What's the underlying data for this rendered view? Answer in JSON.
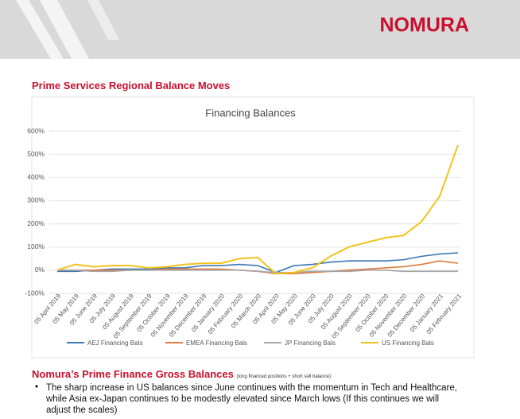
{
  "header": {
    "logo": "NOMURA"
  },
  "heading": "Prime Services Regional Balance Moves",
  "chart_data": {
    "type": "line",
    "title": "Financing Balances",
    "categories": [
      "05 April 2019",
      "05 May 2019",
      "05 June 2019",
      "05 July 2019",
      "05 August 2019",
      "05 September 2019",
      "05 October 2019",
      "05 November 2019",
      "05 December 2019",
      "05 January 2020",
      "05 February 2020",
      "05 March 2020",
      "05 April 2020",
      "05 May 2020",
      "05 June 2020",
      "05 July 2020",
      "05 August 2020",
      "05 September 2020",
      "05 October 2020",
      "05 November 2020",
      "05 December 2020",
      "05 January 2021",
      "05 February 2021"
    ],
    "series": [
      {
        "name": "AEJ Financing Bals",
        "color": "#3b78b5",
        "values": [
          -5,
          -5,
          0,
          5,
          5,
          5,
          10,
          10,
          20,
          20,
          25,
          20,
          -10,
          20,
          25,
          35,
          40,
          40,
          40,
          45,
          60,
          70,
          75
        ]
      },
      {
        "name": "EMEA Financing Bals",
        "color": "#e07a3c",
        "values": [
          0,
          0,
          0,
          0,
          0,
          0,
          5,
          5,
          5,
          5,
          0,
          -5,
          -15,
          -15,
          -10,
          -5,
          0,
          5,
          10,
          15,
          25,
          40,
          30
        ]
      },
      {
        "name": "JP Financing Bals",
        "color": "#a5a5a5",
        "values": [
          0,
          0,
          -5,
          -5,
          0,
          0,
          0,
          0,
          0,
          0,
          0,
          -5,
          -10,
          -10,
          -5,
          -5,
          -5,
          0,
          0,
          -5,
          -5,
          -5,
          -5
        ]
      },
      {
        "name": "US Financing Bals",
        "color": "#f2c31c",
        "values": [
          0,
          25,
          15,
          20,
          20,
          10,
          15,
          25,
          30,
          30,
          50,
          55,
          -15,
          -10,
          10,
          60,
          100,
          120,
          140,
          150,
          210,
          320,
          540
        ]
      }
    ],
    "ylim": [
      -100,
      600
    ],
    "yticks": [
      {
        "value": -100,
        "label": "-100%"
      },
      {
        "value": 0,
        "label": "0%"
      },
      {
        "value": 100,
        "label": "100%"
      },
      {
        "value": 200,
        "label": "200%"
      },
      {
        "value": 300,
        "label": "300%"
      },
      {
        "value": 400,
        "label": "400%"
      },
      {
        "value": 500,
        "label": "500%"
      },
      {
        "value": 600,
        "label": "600%"
      }
    ],
    "grid": true,
    "legend": "bottom"
  },
  "section": {
    "title": "Nomura’s Prime Finance Gross Balances",
    "note": "(long financed positions + short sell balance):",
    "bullet": "The sharp increase in US balances since June continues with the momentum in Tech and Healthcare, while Asia ex-Japan continues to be modestly elevated since March lows (If this continues we will adjust the scales)"
  }
}
